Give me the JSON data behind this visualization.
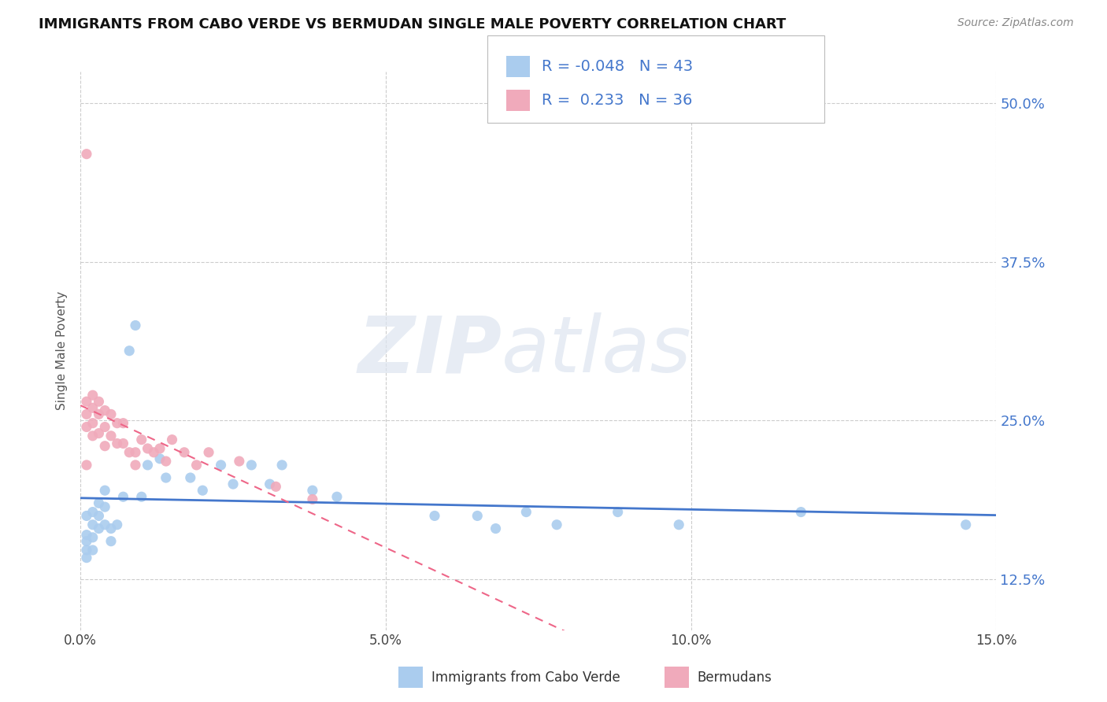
{
  "title": "IMMIGRANTS FROM CABO VERDE VS BERMUDAN SINGLE MALE POVERTY CORRELATION CHART",
  "source": "Source: ZipAtlas.com",
  "ylabel": "Single Male Poverty",
  "cabo_verde_color": "#aaccee",
  "bermuda_color": "#f0aabb",
  "cabo_verde_line_color": "#4477cc",
  "bermuda_line_color": "#ee6688",
  "background_color": "#ffffff",
  "cabo_verde_x": [
    0.001,
    0.001,
    0.001,
    0.001,
    0.001,
    0.002,
    0.002,
    0.002,
    0.002,
    0.003,
    0.003,
    0.003,
    0.004,
    0.004,
    0.004,
    0.005,
    0.005,
    0.006,
    0.007,
    0.008,
    0.009,
    0.01,
    0.011,
    0.013,
    0.014,
    0.018,
    0.02,
    0.023,
    0.025,
    0.028,
    0.031,
    0.033,
    0.038,
    0.042,
    0.058,
    0.065,
    0.068,
    0.073,
    0.078,
    0.088,
    0.098,
    0.118,
    0.145
  ],
  "cabo_verde_y": [
    0.175,
    0.16,
    0.155,
    0.148,
    0.142,
    0.178,
    0.168,
    0.158,
    0.148,
    0.185,
    0.175,
    0.165,
    0.195,
    0.182,
    0.168,
    0.165,
    0.155,
    0.168,
    0.19,
    0.305,
    0.325,
    0.19,
    0.215,
    0.22,
    0.205,
    0.205,
    0.195,
    0.215,
    0.2,
    0.215,
    0.2,
    0.215,
    0.195,
    0.19,
    0.175,
    0.175,
    0.165,
    0.178,
    0.168,
    0.178,
    0.168,
    0.178,
    0.168
  ],
  "bermuda_x": [
    0.001,
    0.001,
    0.001,
    0.001,
    0.001,
    0.002,
    0.002,
    0.002,
    0.002,
    0.003,
    0.003,
    0.003,
    0.004,
    0.004,
    0.004,
    0.005,
    0.005,
    0.006,
    0.006,
    0.007,
    0.007,
    0.008,
    0.009,
    0.009,
    0.01,
    0.011,
    0.012,
    0.013,
    0.014,
    0.015,
    0.017,
    0.019,
    0.021,
    0.026,
    0.032,
    0.038
  ],
  "bermuda_y": [
    0.46,
    0.265,
    0.255,
    0.245,
    0.215,
    0.27,
    0.26,
    0.248,
    0.238,
    0.265,
    0.255,
    0.24,
    0.258,
    0.245,
    0.23,
    0.255,
    0.238,
    0.248,
    0.232,
    0.248,
    0.232,
    0.225,
    0.225,
    0.215,
    0.235,
    0.228,
    0.225,
    0.228,
    0.218,
    0.235,
    0.225,
    0.215,
    0.225,
    0.218,
    0.198,
    0.188
  ],
  "xlim": [
    0.0,
    0.15
  ],
  "ylim": [
    0.085,
    0.525
  ],
  "yticks": [
    0.125,
    0.25,
    0.375,
    0.5
  ],
  "ytick_labels": [
    "12.5%",
    "25.0%",
    "37.5%",
    "50.0%"
  ],
  "xticks": [
    0.0,
    0.05,
    0.1,
    0.15
  ],
  "xtick_labels": [
    "0.0%",
    "5.0%",
    "10.0%",
    "15.0%"
  ],
  "legend_r1": "-0.048",
  "legend_n1": "43",
  "legend_r2": "0.233",
  "legend_n2": "36"
}
